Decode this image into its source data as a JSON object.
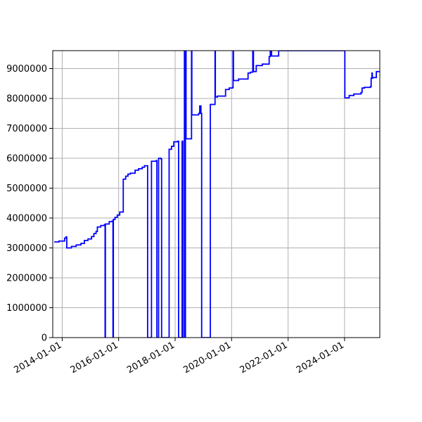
{
  "chart_data": {
    "type": "line",
    "title": "",
    "xlabel": "",
    "ylabel": "",
    "x_axis_type": "date",
    "xlim": [
      "2013-09-01",
      "2025-04-01"
    ],
    "ylim": [
      0,
      9600000
    ],
    "grid": true,
    "legend": "none",
    "x_ticks": [
      "2014-01-01",
      "2016-01-01",
      "2018-01-01",
      "2020-01-01",
      "2022-01-01",
      "2024-01-01"
    ],
    "y_ticks": [
      0,
      1000000,
      2000000,
      3000000,
      4000000,
      5000000,
      6000000,
      7000000,
      8000000,
      9000000
    ],
    "y_tick_labels": [
      "0",
      "1000000",
      "2000000",
      "3000000",
      "4000000",
      "5000000",
      "6000000",
      "7000000",
      "8000000",
      "9000000"
    ],
    "series": [
      {
        "color": "#0000ff",
        "step": true,
        "points": [
          [
            "2013-09-20",
            3200000
          ],
          [
            "2013-11-20",
            3230000
          ],
          [
            "2014-02-01",
            3330000
          ],
          [
            "2014-02-20",
            3370000
          ],
          [
            "2014-03-01",
            3000000
          ],
          [
            "2014-05-01",
            3050000
          ],
          [
            "2014-07-01",
            3100000
          ],
          [
            "2014-09-01",
            3150000
          ],
          [
            "2014-10-15",
            3250000
          ],
          [
            "2014-12-01",
            3300000
          ],
          [
            "2015-01-15",
            3380000
          ],
          [
            "2015-02-15",
            3480000
          ],
          [
            "2015-03-15",
            3550000
          ],
          [
            "2015-04-01",
            3700000
          ],
          [
            "2015-05-15",
            3750000
          ],
          [
            "2015-07-01",
            3780000
          ],
          [
            "2015-07-10",
            0
          ],
          [
            "2015-07-14",
            3800000
          ],
          [
            "2015-09-01",
            3880000
          ],
          [
            "2015-10-10",
            3900000
          ],
          [
            "2015-10-20",
            0
          ],
          [
            "2015-10-25",
            3950000
          ],
          [
            "2015-11-15",
            4020000
          ],
          [
            "2015-12-15",
            4100000
          ],
          [
            "2016-01-15",
            4200000
          ],
          [
            "2016-03-01",
            5300000
          ],
          [
            "2016-04-01",
            5400000
          ],
          [
            "2016-05-01",
            5470000
          ],
          [
            "2016-06-01",
            5500000
          ],
          [
            "2016-08-01",
            5600000
          ],
          [
            "2016-09-15",
            5650000
          ],
          [
            "2016-11-01",
            5700000
          ],
          [
            "2016-12-01",
            5750000
          ],
          [
            "2017-01-10",
            0
          ],
          [
            "2017-03-01",
            5900000
          ],
          [
            "2017-05-01",
            5920000
          ],
          [
            "2017-05-10",
            0
          ],
          [
            "2017-06-01",
            6000000
          ],
          [
            "2017-07-01",
            5980000
          ],
          [
            "2017-07-10",
            0
          ],
          [
            "2017-10-15",
            6300000
          ],
          [
            "2017-11-15",
            6400000
          ],
          [
            "2017-12-15",
            6550000
          ],
          [
            "2018-02-01",
            6570000
          ],
          [
            "2018-02-15",
            0
          ],
          [
            "2018-04-01",
            6570000
          ],
          [
            "2018-04-10",
            0
          ],
          [
            "2018-05-01",
            9600000
          ],
          [
            "2018-05-10",
            0
          ],
          [
            "2018-05-14",
            9600000
          ],
          [
            "2018-05-22",
            6650000
          ],
          [
            "2018-08-01",
            9600000
          ],
          [
            "2018-08-05",
            7450000
          ],
          [
            "2018-11-01",
            7500000
          ],
          [
            "2018-11-15",
            7750000
          ],
          [
            "2018-12-01",
            7500000
          ],
          [
            "2018-12-10",
            0
          ],
          [
            "2019-04-01",
            7800000
          ],
          [
            "2019-06-01",
            9600000
          ],
          [
            "2019-06-05",
            8050000
          ],
          [
            "2019-07-01",
            8080000
          ],
          [
            "2019-10-15",
            8300000
          ],
          [
            "2019-12-01",
            8350000
          ],
          [
            "2020-01-15",
            8370000
          ],
          [
            "2020-01-20",
            9600000
          ],
          [
            "2020-01-25",
            8600000
          ],
          [
            "2020-04-01",
            8650000
          ],
          [
            "2020-08-01",
            8850000
          ],
          [
            "2020-09-01",
            8880000
          ],
          [
            "2020-10-01",
            9600000
          ],
          [
            "2020-10-10",
            8900000
          ],
          [
            "2020-11-15",
            9100000
          ],
          [
            "2021-02-01",
            9150000
          ],
          [
            "2021-05-01",
            9400000
          ],
          [
            "2021-05-15",
            9600000
          ],
          [
            "2021-06-01",
            9420000
          ],
          [
            "2021-09-01",
            9600000
          ],
          [
            "2023-12-15",
            9600000
          ],
          [
            "2024-01-05",
            8020000
          ],
          [
            "2024-03-01",
            8100000
          ],
          [
            "2024-05-01",
            8150000
          ],
          [
            "2024-08-01",
            8200000
          ],
          [
            "2024-08-15",
            8350000
          ],
          [
            "2024-09-15",
            8370000
          ],
          [
            "2024-12-01",
            8400000
          ],
          [
            "2024-12-10",
            8680000
          ],
          [
            "2024-12-20",
            8850000
          ],
          [
            "2024-12-25",
            8680000
          ],
          [
            "2025-01-01",
            8700000
          ],
          [
            "2025-02-15",
            8900000
          ],
          [
            "2025-04-01",
            8900000
          ]
        ]
      }
    ]
  }
}
